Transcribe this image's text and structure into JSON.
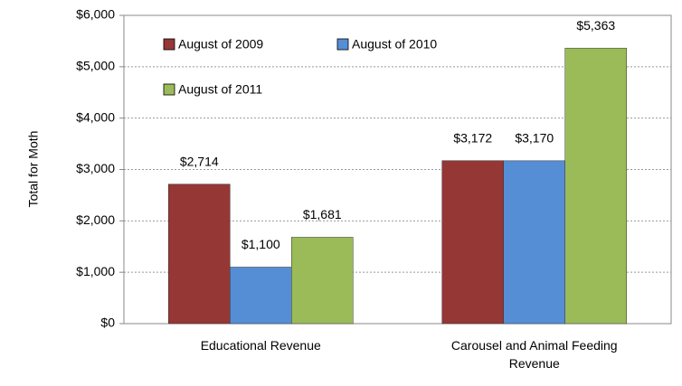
{
  "chart_data": {
    "type": "bar",
    "y_label": "Total for Moth",
    "categories": [
      "Educational Revenue",
      "Carousel and Animal Feeding Revenue"
    ],
    "series": [
      {
        "name": "August of 2009",
        "color": "#953735",
        "values": [
          2714,
          3172
        ],
        "value_labels": [
          "$2,714",
          "$3,172"
        ]
      },
      {
        "name": "August of 2010",
        "color": "#558ed5",
        "values": [
          1100,
          3170
        ],
        "value_labels": [
          "$1,100",
          "$3,170"
        ]
      },
      {
        "name": "August of 2011",
        "color": "#9bbb59",
        "values": [
          1681,
          5363
        ],
        "value_labels": [
          "$1,681",
          "$5,363"
        ]
      }
    ],
    "ylim": [
      0,
      6000
    ],
    "yticks": [
      {
        "value": 0,
        "label": "$0"
      },
      {
        "value": 1000,
        "label": "$1,000"
      },
      {
        "value": 2000,
        "label": "$2,000"
      },
      {
        "value": 3000,
        "label": "$3,000"
      },
      {
        "value": 4000,
        "label": "$4,000"
      },
      {
        "value": 5000,
        "label": "$5,000"
      },
      {
        "value": 6000,
        "label": "$6,000"
      }
    ],
    "grid": true,
    "legend": "upper left"
  }
}
